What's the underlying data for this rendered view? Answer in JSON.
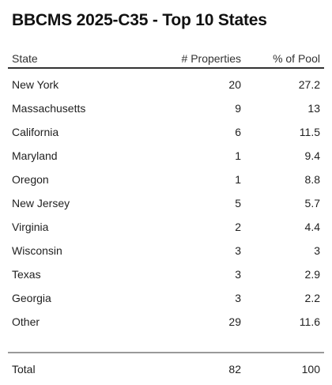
{
  "title": "BBCMS 2025-C35 - Top 10 States",
  "table": {
    "headers": {
      "state": "State",
      "properties": "# Properties",
      "pool": "% of Pool"
    },
    "rows": [
      {
        "state": "New York",
        "properties": "20",
        "pool": "27.2"
      },
      {
        "state": "Massachusetts",
        "properties": "9",
        "pool": "13"
      },
      {
        "state": "California",
        "properties": "6",
        "pool": "11.5"
      },
      {
        "state": "Maryland",
        "properties": "1",
        "pool": "9.4"
      },
      {
        "state": "Oregon",
        "properties": "1",
        "pool": "8.8"
      },
      {
        "state": "New Jersey",
        "properties": "5",
        "pool": "5.7"
      },
      {
        "state": "Virginia",
        "properties": "2",
        "pool": "4.4"
      },
      {
        "state": "Wisconsin",
        "properties": "3",
        "pool": "3"
      },
      {
        "state": "Texas",
        "properties": "3",
        "pool": "2.9"
      },
      {
        "state": "Georgia",
        "properties": "3",
        "pool": "2.2"
      },
      {
        "state": "Other",
        "properties": "29",
        "pool": "11.6"
      }
    ],
    "total": {
      "state": "Total",
      "properties": "82",
      "pool": "100"
    }
  }
}
